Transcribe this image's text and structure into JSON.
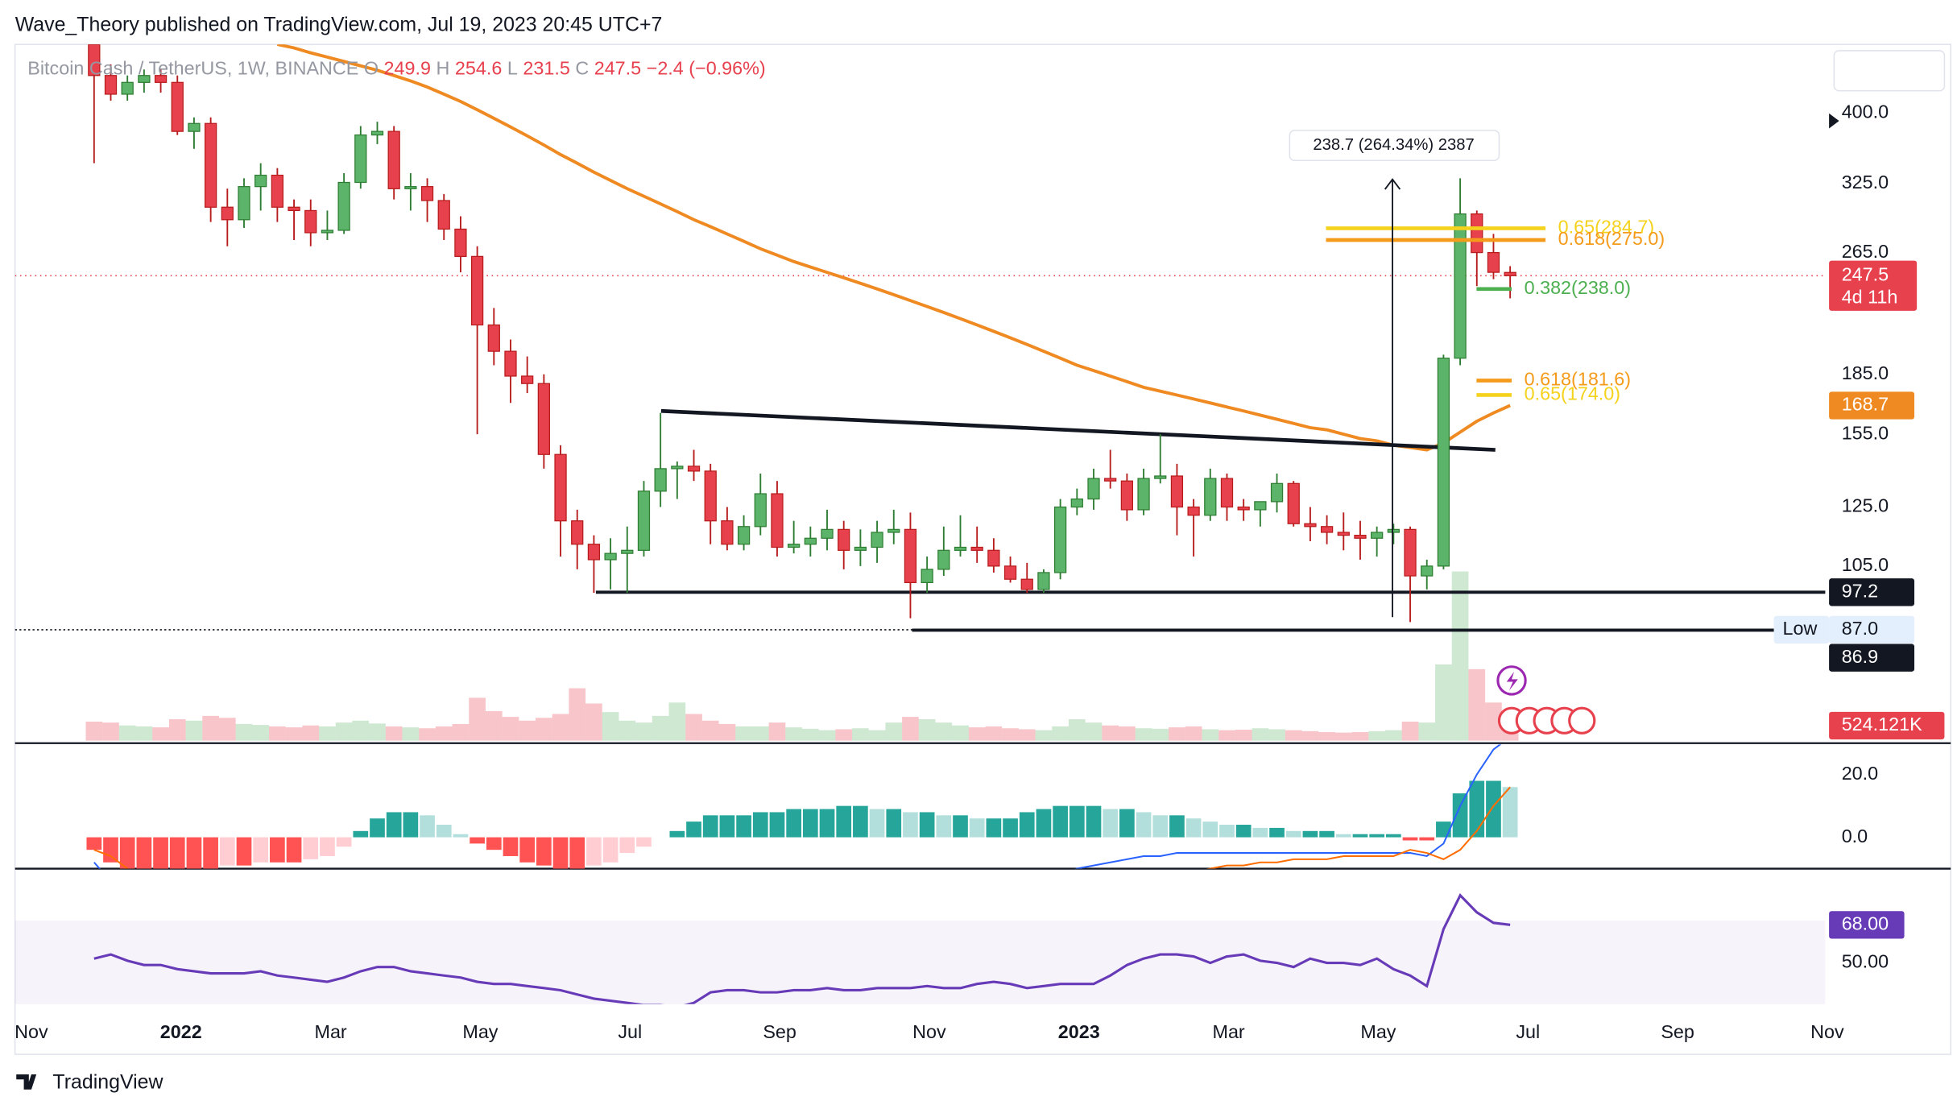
{
  "header": {
    "publisher": "Wave_Theory published on TradingView.com, Jul 19, 2023 20:45 UTC+7",
    "symbol": "Bitcoin Cash / TetherUS, 1W, BINANCE",
    "ohlc_letters": [
      "O",
      "H",
      "L",
      "C"
    ],
    "change": "−2.4 (−0.96%)"
  },
  "chart_data": {
    "type": "candlestick",
    "log_scale": true,
    "ylim": [
      62.7,
      490
    ],
    "yticks": [
      {
        "value": 400,
        "label": "400.0"
      },
      {
        "value": 325,
        "label": "325.0"
      },
      {
        "value": 265,
        "label": "265.0"
      },
      {
        "value": 185,
        "label": "185.0"
      },
      {
        "value": 155,
        "label": "155.0"
      },
      {
        "value": 125,
        "label": "125.0"
      },
      {
        "value": 105,
        "label": "105.0"
      }
    ],
    "x_labels": [
      "Nov",
      "2022",
      "Mar",
      "May",
      "Jul",
      "Sep",
      "Nov",
      "2023",
      "Mar",
      "May",
      "Jul",
      "Sep",
      "Nov"
    ],
    "colors": {
      "up": "#5cb46a",
      "up_border": "#2e7d32",
      "down": "#e8414e",
      "down_border": "#b71c1c"
    },
    "open": [
      490,
      447,
      423,
      438,
      447,
      438,
      379,
      388,
      303,
      292,
      322,
      333,
      303,
      300,
      281,
      283,
      326,
      375,
      379,
      320,
      322,
      309,
      284,
      262,
      214,
      198,
      184,
      180,
      146,
      120,
      112,
      107,
      109,
      110,
      131,
      140,
      141,
      139,
      120,
      112,
      118,
      130,
      111,
      112,
      114,
      117,
      110,
      111,
      116,
      117,
      100,
      104,
      110,
      111,
      110,
      105,
      101,
      98,
      103,
      125,
      128,
      136,
      135,
      124,
      136,
      137,
      125,
      122,
      136,
      125,
      124,
      127,
      134,
      119,
      118,
      116,
      115,
      114,
      116,
      117,
      102,
      105,
      194,
      297,
      265,
      249.9
    ],
    "high": [
      520,
      462,
      447,
      455,
      455,
      447,
      395,
      395,
      320,
      330,
      345,
      340,
      310,
      310,
      300,
      335,
      385,
      390,
      385,
      335,
      330,
      315,
      295,
      270,
      225,
      205,
      195,
      185,
      150,
      124,
      115,
      114,
      118,
      135,
      165,
      143,
      148,
      142,
      125,
      122,
      138,
      135,
      120,
      118,
      124,
      120,
      117,
      120,
      124,
      123,
      108,
      118,
      122,
      118,
      114,
      108,
      106,
      104,
      128,
      132,
      140,
      148,
      138,
      140,
      155,
      142,
      128,
      140,
      138,
      128,
      127,
      138,
      135,
      125,
      122,
      123,
      120,
      118,
      119,
      118,
      107,
      196,
      330,
      300,
      280,
      254.6
    ],
    "low": [
      345,
      415,
      415,
      425,
      425,
      375,
      360,
      290,
      270,
      285,
      300,
      290,
      275,
      270,
      275,
      280,
      320,
      365,
      310,
      300,
      290,
      275,
      250,
      155,
      190,
      170,
      175,
      140,
      108,
      104,
      97,
      98,
      97,
      108,
      125,
      128,
      135,
      112,
      110,
      110,
      115,
      108,
      109,
      108,
      110,
      104,
      105,
      106,
      112,
      90,
      97,
      102,
      108,
      106,
      103,
      100,
      97,
      97,
      101,
      122,
      124,
      132,
      120,
      122,
      134,
      115,
      108,
      120,
      120,
      120,
      118,
      123,
      118,
      113,
      112,
      110,
      107,
      108,
      112,
      89,
      98,
      104,
      190,
      240,
      245,
      231.5
    ],
    "close": [
      447,
      423,
      438,
      447,
      438,
      379,
      388,
      303,
      292,
      322,
      333,
      303,
      300,
      281,
      283,
      326,
      375,
      379,
      320,
      322,
      309,
      284,
      262,
      214,
      198,
      184,
      180,
      146,
      120,
      112,
      107,
      109,
      110,
      131,
      140,
      141,
      139,
      120,
      112,
      118,
      130,
      111,
      112,
      114,
      117,
      110,
      111,
      116,
      117,
      100,
      104,
      110,
      111,
      110,
      105,
      101,
      98,
      103,
      125,
      128,
      136,
      135,
      124,
      136,
      137,
      125,
      122,
      136,
      125,
      124,
      127,
      134,
      119,
      118,
      116,
      115,
      114,
      116,
      117,
      102,
      105,
      194,
      297,
      265,
      250,
      247.5
    ],
    "current_price_color": "#e8414e",
    "countdown": "4d 11h",
    "moving_average": {
      "color": "#ef8a22",
      "values": [
        null,
        null,
        null,
        null,
        null,
        null,
        null,
        null,
        null,
        null,
        null,
        490,
        485,
        478,
        472,
        466,
        460,
        454,
        447,
        440,
        432,
        423,
        414,
        404,
        394,
        384,
        374,
        364,
        354,
        345,
        336,
        328,
        320,
        313,
        306,
        299,
        292,
        286,
        280,
        274,
        268,
        263,
        258,
        254,
        250,
        246,
        242,
        238,
        234,
        230,
        226,
        222,
        218,
        214,
        210,
        206,
        202,
        198,
        194,
        190,
        187,
        184,
        181,
        178,
        176,
        174,
        172,
        170,
        168,
        166,
        164,
        162,
        160,
        158,
        157,
        155,
        153,
        152,
        150,
        149,
        148,
        151,
        156,
        161,
        165,
        168.7
      ]
    },
    "volume": {
      "values": [
        400,
        380,
        320,
        300,
        280,
        450,
        420,
        520,
        480,
        350,
        330,
        300,
        280,
        320,
        300,
        380,
        420,
        360,
        300,
        280,
        260,
        300,
        350,
        900,
        620,
        500,
        420,
        480,
        560,
        1100,
        780,
        600,
        420,
        380,
        520,
        800,
        560,
        420,
        350,
        300,
        300,
        380,
        280,
        250,
        220,
        240,
        260,
        220,
        380,
        500,
        450,
        380,
        320,
        280,
        300,
        260,
        240,
        220,
        300,
        450,
        380,
        320,
        300,
        260,
        250,
        280,
        300,
        240,
        220,
        230,
        260,
        240,
        220,
        200,
        180,
        170,
        180,
        200,
        220,
        400,
        380,
        1600,
        3550,
        1500,
        800,
        524.121
      ],
      "last_label": "524.121K"
    },
    "levels": {
      "support": 97.2,
      "low_line": 86.9,
      "low_marker": {
        "value": 87,
        "label": "87.0"
      },
      "low_text": "Low"
    },
    "trendline": {
      "from": 166,
      "to": 148
    },
    "fib": [
      {
        "label": "0.65(284.7)",
        "value": 284.7,
        "color": "#f5d21c"
      },
      {
        "label": "0.618(275.0)",
        "value": 275.0,
        "color": "#f59b1b"
      },
      {
        "label": "0.382(238.0)",
        "value": 238.0,
        "color": "#4caf50"
      },
      {
        "label": "0.618(181.6)",
        "value": 181.6,
        "color": "#f59b1b"
      },
      {
        "label": "0.65(174.0)",
        "value": 174.0,
        "color": "#f5d21c"
      }
    ],
    "measure": {
      "from": 90.3,
      "to": 329,
      "label": "238.7 (264.34%) 2387"
    },
    "macd": {
      "ylim": [
        -10,
        29.6
      ],
      "yticks": [
        {
          "value": 20,
          "label": "20.0"
        },
        {
          "value": 0,
          "label": "0.0"
        }
      ],
      "colors": {
        "pos_up": "#26a69a",
        "pos_down": "#b2dfdb",
        "neg_down": "#ff5252",
        "neg_up": "#ffcdd2",
        "macd": "#2962ff",
        "signal": "#ff6d00"
      },
      "histogram": [
        -4,
        -8,
        -10,
        -10,
        -10,
        -10,
        -10,
        -10,
        -9,
        -9,
        -8,
        -8,
        -8,
        -7,
        -6,
        -3,
        2,
        6,
        8,
        8,
        7,
        4,
        1,
        -2,
        -4,
        -6,
        -8,
        -9,
        -10,
        -10,
        -9,
        -8,
        -5,
        -3,
        0,
        2,
        5,
        7,
        7,
        7,
        8,
        8,
        9,
        9,
        9,
        10,
        10,
        9,
        9,
        8,
        8,
        7,
        7,
        6,
        6,
        6,
        8,
        9,
        10,
        10,
        10,
        9,
        9,
        8,
        7,
        7,
        6,
        5,
        4,
        4,
        3,
        3,
        2,
        2,
        2,
        1,
        1,
        1,
        1,
        -1,
        -1,
        5,
        14,
        18,
        18,
        16
      ],
      "macd_line": [
        -8,
        -14,
        -20,
        -25,
        -30,
        -34,
        -37,
        -40,
        -42,
        -43,
        -44,
        -44,
        -44,
        -43,
        -42,
        -40,
        -37,
        -34,
        -32,
        -31,
        -32,
        -34,
        -36,
        -38,
        -41,
        -44,
        -47,
        -50,
        -53,
        -55,
        -56,
        -56,
        -55,
        -54,
        -52,
        -50,
        -48,
        -46,
        -44,
        -42,
        -40,
        -38,
        -36,
        -34,
        -32,
        -30,
        -28,
        -26,
        -24,
        -22,
        -20,
        -19,
        -18,
        -17,
        -16,
        -15,
        -14,
        -13,
        -12,
        -10,
        -9,
        -8,
        -7,
        -6,
        -6,
        -5,
        -5,
        -5,
        -5,
        -5,
        -5,
        -5,
        -5,
        -5,
        -5,
        -5,
        -5,
        -5,
        -5,
        -5,
        -6,
        -2,
        10,
        20,
        28,
        32
      ],
      "signal_line": [
        -4,
        -6,
        -10,
        -15,
        -20,
        -24,
        -27,
        -30,
        -33,
        -34,
        -36,
        -36,
        -36,
        -36,
        -36,
        -37,
        -39,
        -40,
        -40,
        -39,
        -39,
        -38,
        -37,
        -36,
        -37,
        -38,
        -39,
        -41,
        -43,
        -45,
        -47,
        -48,
        -50,
        -51,
        -52,
        -52,
        -53,
        -53,
        -51,
        -49,
        -48,
        -46,
        -45,
        -43,
        -41,
        -40,
        -38,
        -35,
        -33,
        -30,
        -28,
        -26,
        -25,
        -23,
        -22,
        -21,
        -22,
        -22,
        -22,
        -20,
        -19,
        -17,
        -16,
        -14,
        -13,
        -12,
        -11,
        -10,
        -9,
        -9,
        -8,
        -8,
        -7,
        -7,
        -7,
        -6,
        -6,
        -6,
        -6,
        -4,
        -5,
        -7,
        -4,
        2,
        10,
        16
      ]
    },
    "rsi": {
      "ylim": [
        30.4,
        92.9
      ],
      "yticks": [
        {
          "value": 50,
          "label": "50.00"
        }
      ],
      "band": [
        30,
        70
      ],
      "color": "#673ab7",
      "values": [
        52,
        54,
        51,
        49,
        49,
        47,
        46,
        45,
        45,
        45,
        46,
        44,
        43,
        42,
        41,
        43,
        46,
        48,
        48,
        46,
        45,
        44,
        43,
        41,
        40,
        40,
        39,
        38,
        37,
        35,
        33,
        32,
        31,
        30,
        30,
        29,
        31,
        36,
        37,
        37,
        36,
        36,
        37,
        37,
        38,
        37,
        37,
        38,
        38,
        38,
        39,
        38,
        38,
        40,
        41,
        40,
        38,
        39,
        40,
        40,
        40,
        44,
        49,
        52,
        54,
        54,
        53,
        50,
        53,
        54,
        51,
        50,
        48,
        52,
        50,
        50,
        49,
        52,
        47,
        44,
        39,
        66,
        82,
        74,
        69,
        68
      ],
      "last_label": "68.00"
    }
  },
  "footer": {
    "brand": "TradingView"
  }
}
